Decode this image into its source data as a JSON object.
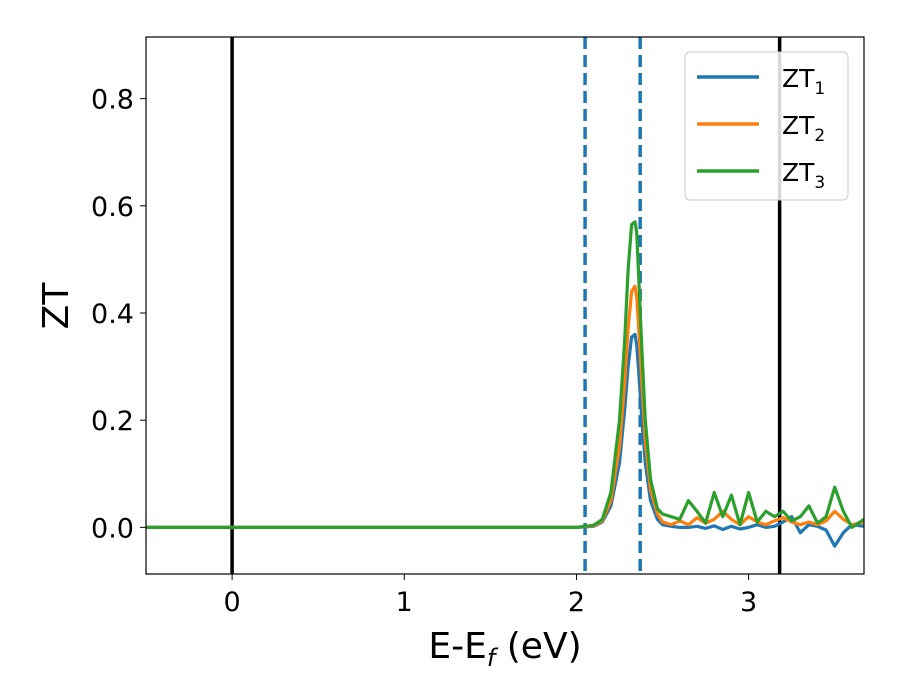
{
  "chart_data": {
    "type": "line",
    "xlabel": {
      "main": "E-E",
      "sub": "f",
      "unit": " (eV)"
    },
    "ylabel": "ZT",
    "xlim": [
      -0.5,
      3.67
    ],
    "ylim": [
      -0.087,
      0.915
    ],
    "xticks": [
      0,
      1,
      2,
      3
    ],
    "xtick_labels": [
      "0",
      "1",
      "2",
      "3"
    ],
    "yticks": [
      0.0,
      0.2,
      0.4,
      0.6,
      0.8
    ],
    "ytick_labels": [
      "0.0",
      "0.2",
      "0.4",
      "0.6",
      "0.8"
    ],
    "grid": false,
    "legend_position": "top-right",
    "vlines_solid": [
      0.0,
      3.18
    ],
    "vlines_dashed": [
      2.05,
      2.37
    ],
    "series": [
      {
        "name": "ZT",
        "sub": "1",
        "color": "#1f77b4",
        "x": [
          -0.5,
          2.0,
          2.1,
          2.15,
          2.2,
          2.25,
          2.28,
          2.3,
          2.32,
          2.34,
          2.35,
          2.36,
          2.38,
          2.4,
          2.43,
          2.47,
          2.5,
          2.55,
          2.6,
          2.65,
          2.7,
          2.75,
          2.8,
          2.85,
          2.9,
          2.95,
          3.0,
          3.05,
          3.1,
          3.15,
          3.2,
          3.25,
          3.3,
          3.35,
          3.4,
          3.45,
          3.5,
          3.55,
          3.6,
          3.67
        ],
        "y": [
          0.0,
          0.0,
          0.002,
          0.01,
          0.04,
          0.12,
          0.22,
          0.3,
          0.355,
          0.36,
          0.34,
          0.3,
          0.2,
          0.12,
          0.05,
          0.015,
          0.005,
          0.002,
          0.0,
          0.0,
          0.002,
          -0.002,
          0.003,
          -0.004,
          0.002,
          -0.003,
          0.0,
          0.005,
          0.0,
          0.002,
          0.01,
          0.02,
          -0.01,
          0.005,
          0.002,
          -0.005,
          -0.035,
          -0.01,
          0.005,
          0.002
        ]
      },
      {
        "name": "ZT",
        "sub": "2",
        "color": "#ff7f0e",
        "x": [
          -0.5,
          2.0,
          2.1,
          2.15,
          2.2,
          2.25,
          2.28,
          2.3,
          2.32,
          2.34,
          2.35,
          2.36,
          2.38,
          2.4,
          2.43,
          2.47,
          2.5,
          2.55,
          2.6,
          2.65,
          2.7,
          2.75,
          2.8,
          2.85,
          2.9,
          2.95,
          3.0,
          3.05,
          3.1,
          3.15,
          3.2,
          3.25,
          3.3,
          3.35,
          3.4,
          3.45,
          3.5,
          3.55,
          3.6,
          3.67
        ],
        "y": [
          0.0,
          0.0,
          0.003,
          0.012,
          0.05,
          0.15,
          0.27,
          0.37,
          0.44,
          0.45,
          0.43,
          0.38,
          0.27,
          0.16,
          0.07,
          0.025,
          0.01,
          0.005,
          0.012,
          0.005,
          0.018,
          0.008,
          0.015,
          0.03,
          0.015,
          0.005,
          0.02,
          0.01,
          0.005,
          0.012,
          0.018,
          0.01,
          0.005,
          0.01,
          0.005,
          0.012,
          0.03,
          0.015,
          0.005,
          0.01
        ]
      },
      {
        "name": "ZT",
        "sub": "3",
        "color": "#2ca02c",
        "x": [
          -0.5,
          2.0,
          2.1,
          2.15,
          2.2,
          2.25,
          2.28,
          2.3,
          2.32,
          2.34,
          2.35,
          2.36,
          2.38,
          2.4,
          2.43,
          2.47,
          2.5,
          2.55,
          2.6,
          2.65,
          2.7,
          2.75,
          2.8,
          2.85,
          2.9,
          2.95,
          3.0,
          3.05,
          3.1,
          3.15,
          3.2,
          3.25,
          3.3,
          3.35,
          3.4,
          3.45,
          3.5,
          3.55,
          3.6,
          3.67
        ],
        "y": [
          0.0,
          0.0,
          0.004,
          0.015,
          0.065,
          0.2,
          0.35,
          0.48,
          0.565,
          0.57,
          0.55,
          0.48,
          0.33,
          0.2,
          0.09,
          0.035,
          0.025,
          0.02,
          0.015,
          0.05,
          0.03,
          0.008,
          0.065,
          0.02,
          0.06,
          0.005,
          0.065,
          0.01,
          0.03,
          0.02,
          0.03,
          0.012,
          0.02,
          0.04,
          0.008,
          0.02,
          0.075,
          0.03,
          0.0,
          0.015
        ]
      }
    ]
  }
}
